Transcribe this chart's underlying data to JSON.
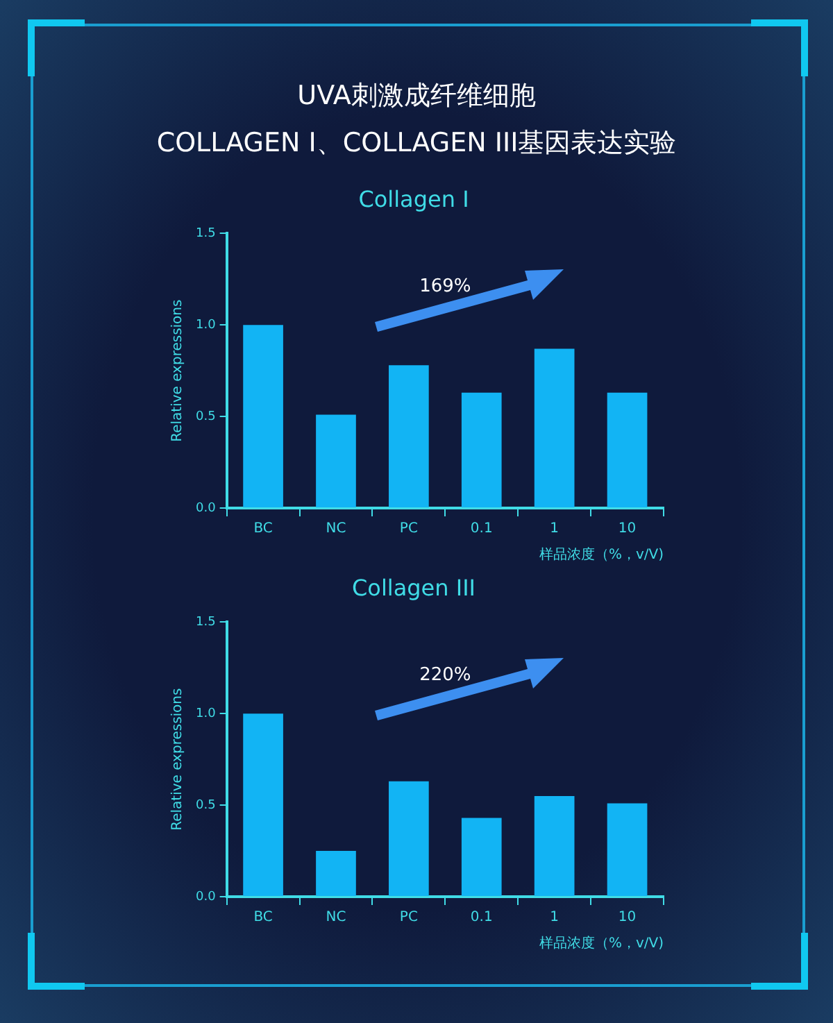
{
  "chart_data": [
    {
      "type": "bar",
      "title": "Collagen I",
      "xlabel": "样品浓度（%，v/V)",
      "ylabel": "Relative expressions",
      "categories": [
        "BC",
        "NC",
        "PC",
        "0.1",
        "1",
        "10"
      ],
      "values": [
        1.0,
        0.51,
        0.78,
        0.63,
        0.87,
        0.63
      ],
      "color": "#12b4f4",
      "ylim": [
        0,
        1.5
      ],
      "yticks": [
        {
          "value": 0,
          "label": "0.0"
        },
        {
          "value": 0.5,
          "label": "0.5"
        },
        {
          "value": 1,
          "label": "1.0"
        },
        {
          "value": 1.5,
          "label": "1.5"
        }
      ],
      "grid": false,
      "legend": false,
      "annotations": [
        "UVA刺激成纤维细胞",
        "COLLAGEN I、COLLAGEN III基因表达实验",
        "169%"
      ]
    },
    {
      "type": "bar",
      "title": "Collagen III",
      "xlabel": "样品浓度（%，v/V)",
      "ylabel": "Relative expressions",
      "categories": [
        "BC",
        "NC",
        "PC",
        "0.1",
        "1",
        "10"
      ],
      "values": [
        1.0,
        0.25,
        0.63,
        0.43,
        0.55,
        0.51
      ],
      "color": "#12b4f4",
      "ylim": [
        0,
        1.5
      ],
      "yticks": [
        {
          "value": 0,
          "label": "0.0"
        },
        {
          "value": 0.5,
          "label": "0.5"
        },
        {
          "value": 1,
          "label": "1.0"
        },
        {
          "value": 1.5,
          "label": "1.5"
        }
      ],
      "grid": false,
      "legend": false,
      "annotations": [
        "220%"
      ]
    }
  ]
}
